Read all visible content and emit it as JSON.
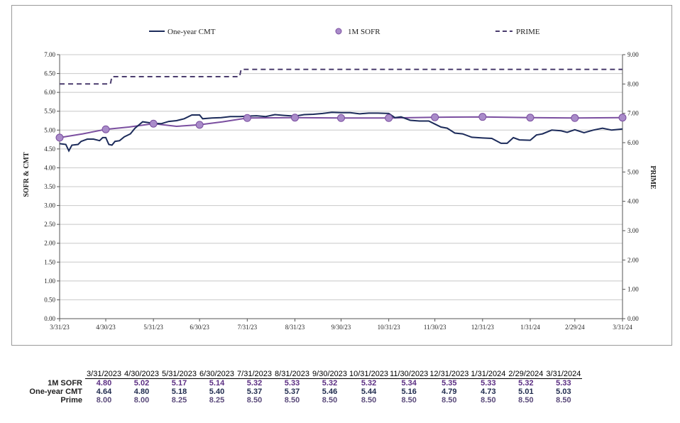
{
  "legend": {
    "cmt": "One-year CMT",
    "sofr": "1M SOFR",
    "prime": "PRIME"
  },
  "colors": {
    "cmt": "#1c2b5a",
    "sofr": "#7b4fa0",
    "sofr_marker": "#a98bc9",
    "prime": "#4b3d6e",
    "grid": "#c8c8c8"
  },
  "chart_data": {
    "type": "line",
    "title": "",
    "ylabel": "SOFR & CMT",
    "y2label": "PRIME",
    "ylim": [
      0,
      7
    ],
    "y2lim": [
      0,
      9
    ],
    "y_ticks": [
      "0.00",
      "0.50",
      "1.00",
      "1.50",
      "2.00",
      "2.50",
      "3.00",
      "3.50",
      "4.00",
      "4.50",
      "5.00",
      "5.50",
      "6.00",
      "6.50",
      "7.00"
    ],
    "y2_ticks": [
      "0.00",
      "1.00",
      "2.00",
      "3.00",
      "4.00",
      "5.00",
      "6.00",
      "7.00",
      "8.00",
      "9.00"
    ],
    "x_ticks": [
      "3/31/23",
      "4/30/23",
      "5/31/23",
      "6/30/23",
      "7/31/23",
      "8/31/23",
      "9/30/23",
      "10/31/23",
      "11/30/23",
      "12/31/23",
      "1/31/24",
      "2/29/24",
      "3/31/24"
    ],
    "legend_position": "top",
    "grid": true,
    "series": [
      {
        "name": "One-year CMT",
        "axis": "left",
        "style": "solid",
        "points": [
          [
            "3/31/23",
            4.64
          ],
          [
            "4/4/23",
            4.62
          ],
          [
            "4/6/23",
            4.45
          ],
          [
            "4/8/23",
            4.6
          ],
          [
            "4/12/23",
            4.62
          ],
          [
            "4/14/23",
            4.7
          ],
          [
            "4/18/23",
            4.76
          ],
          [
            "4/22/23",
            4.76
          ],
          [
            "4/26/23",
            4.72
          ],
          [
            "4/28/23",
            4.8
          ],
          [
            "4/30/23",
            4.8
          ],
          [
            "5/2/23",
            4.62
          ],
          [
            "5/4/23",
            4.6
          ],
          [
            "5/6/23",
            4.7
          ],
          [
            "5/9/23",
            4.72
          ],
          [
            "5/12/23",
            4.82
          ],
          [
            "5/16/23",
            4.9
          ],
          [
            "5/19/23",
            5.05
          ],
          [
            "5/24/23",
            5.22
          ],
          [
            "5/31/23",
            5.18
          ],
          [
            "6/5/23",
            5.17
          ],
          [
            "6/10/23",
            5.23
          ],
          [
            "6/15/23",
            5.25
          ],
          [
            "6/20/23",
            5.3
          ],
          [
            "6/25/23",
            5.4
          ],
          [
            "6/30/23",
            5.4
          ],
          [
            "7/2/23",
            5.3
          ],
          [
            "7/8/23",
            5.32
          ],
          [
            "7/14/23",
            5.33
          ],
          [
            "7/20/23",
            5.36
          ],
          [
            "7/26/23",
            5.36
          ],
          [
            "7/31/23",
            5.37
          ],
          [
            "8/6/23",
            5.38
          ],
          [
            "8/12/23",
            5.36
          ],
          [
            "8/18/23",
            5.41
          ],
          [
            "8/24/23",
            5.39
          ],
          [
            "8/31/23",
            5.37
          ],
          [
            "9/6/23",
            5.41
          ],
          [
            "9/12/23",
            5.42
          ],
          [
            "9/18/23",
            5.44
          ],
          [
            "9/24/23",
            5.47
          ],
          [
            "9/30/23",
            5.46
          ],
          [
            "10/6/23",
            5.46
          ],
          [
            "10/12/23",
            5.43
          ],
          [
            "10/18/23",
            5.45
          ],
          [
            "10/24/23",
            5.45
          ],
          [
            "10/31/23",
            5.44
          ],
          [
            "11/4/23",
            5.33
          ],
          [
            "11/8/23",
            5.35
          ],
          [
            "11/14/23",
            5.26
          ],
          [
            "11/20/23",
            5.24
          ],
          [
            "11/26/23",
            5.24
          ],
          [
            "11/30/23",
            5.16
          ],
          [
            "12/4/23",
            5.08
          ],
          [
            "12/8/23",
            5.05
          ],
          [
            "12/13/23",
            4.92
          ],
          [
            "12/18/23",
            4.9
          ],
          [
            "12/24/23",
            4.81
          ],
          [
            "12/31/23",
            4.79
          ],
          [
            "1/6/24",
            4.78
          ],
          [
            "1/12/24",
            4.65
          ],
          [
            "1/16/24",
            4.65
          ],
          [
            "1/20/24",
            4.8
          ],
          [
            "1/24/24",
            4.74
          ],
          [
            "1/31/24",
            4.73
          ],
          [
            "2/4/24",
            4.87
          ],
          [
            "2/8/24",
            4.9
          ],
          [
            "2/14/24",
            5.0
          ],
          [
            "2/20/24",
            4.98
          ],
          [
            "2/24/24",
            4.94
          ],
          [
            "2/29/24",
            5.01
          ],
          [
            "3/6/24",
            4.93
          ],
          [
            "3/12/24",
            5.0
          ],
          [
            "3/18/24",
            5.05
          ],
          [
            "3/24/24",
            5.0
          ],
          [
            "3/31/24",
            5.03
          ]
        ]
      },
      {
        "name": "1M SOFR",
        "axis": "left",
        "style": "solid-with-monthly-markers",
        "points": [
          [
            "3/31/23",
            4.8
          ],
          [
            "4/15/23",
            4.9
          ],
          [
            "4/30/23",
            5.02
          ],
          [
            "5/15/23",
            5.08
          ],
          [
            "5/31/23",
            5.17
          ],
          [
            "6/15/23",
            5.1
          ],
          [
            "6/30/23",
            5.14
          ],
          [
            "7/15/23",
            5.22
          ],
          [
            "7/31/23",
            5.32
          ],
          [
            "8/31/23",
            5.33
          ],
          [
            "9/30/23",
            5.32
          ],
          [
            "10/31/23",
            5.32
          ],
          [
            "11/30/23",
            5.34
          ],
          [
            "12/31/23",
            5.35
          ],
          [
            "1/31/24",
            5.33
          ],
          [
            "2/29/24",
            5.32
          ],
          [
            "3/31/24",
            5.33
          ]
        ]
      },
      {
        "name": "PRIME",
        "axis": "right",
        "style": "dashed",
        "points": [
          [
            "3/31/23",
            8.0
          ],
          [
            "5/3/23",
            8.0
          ],
          [
            "5/4/23",
            8.25
          ],
          [
            "7/26/23",
            8.25
          ],
          [
            "7/27/23",
            8.5
          ],
          [
            "3/31/24",
            8.5
          ]
        ]
      }
    ]
  },
  "table": {
    "headers": [
      "3/31/2023",
      "4/30/2023",
      "5/31/2023",
      "6/30/2023",
      "7/31/2023",
      "8/31/2023",
      "9/30/2023",
      "10/31/2023",
      "11/30/2023",
      "12/31/2023",
      "1/31/2024",
      "2/29/2024",
      "3/31/2024"
    ],
    "rows": [
      {
        "label": "1M SOFR",
        "values": [
          "4.80",
          "5.02",
          "5.17",
          "5.14",
          "5.32",
          "5.33",
          "5.32",
          "5.32",
          "5.34",
          "5.35",
          "5.33",
          "5.32",
          "5.33"
        ]
      },
      {
        "label": "One-year CMT",
        "values": [
          "4.64",
          "4.80",
          "5.18",
          "5.40",
          "5.37",
          "5.37",
          "5.46",
          "5.44",
          "5.16",
          "4.79",
          "4.73",
          "5.01",
          "5.03"
        ]
      },
      {
        "label": "Prime",
        "values": [
          "8.00",
          "8.00",
          "8.25",
          "8.25",
          "8.50",
          "8.50",
          "8.50",
          "8.50",
          "8.50",
          "8.50",
          "8.50",
          "8.50",
          "8.50"
        ]
      }
    ]
  }
}
